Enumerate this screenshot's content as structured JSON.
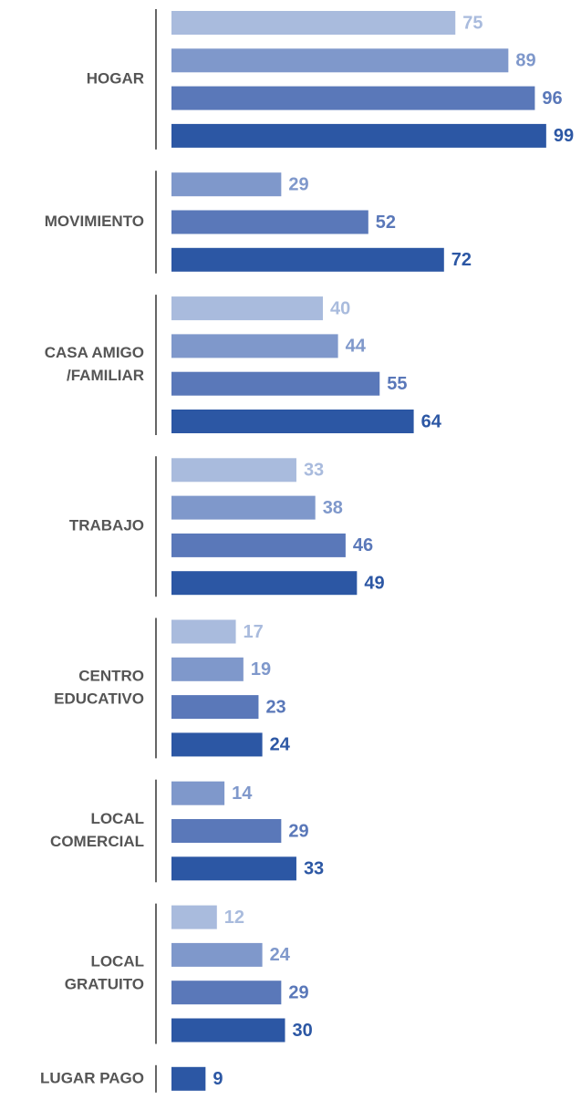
{
  "chart_data": {
    "type": "grouped-bar-horizontal",
    "categories": [
      [
        "HOGAR"
      ],
      [
        "MOVIMIENTO"
      ],
      [
        "CASA AMIGO",
        "/FAMILIAR"
      ],
      [
        "TRABAJO"
      ],
      [
        "CENTRO",
        "EDUCATIVO"
      ],
      [
        "LOCAL",
        "COMERCIAL"
      ],
      [
        "LOCAL",
        "GRATUITO"
      ],
      [
        "LUGAR PAGO"
      ]
    ],
    "series": [
      {
        "color": "#a9bbdd",
        "values": [
          75,
          null,
          40,
          33,
          17,
          null,
          12,
          null
        ]
      },
      {
        "color": "#7f98cb",
        "values": [
          89,
          29,
          44,
          38,
          19,
          14,
          24,
          null
        ]
      },
      {
        "color": "#5a78b9",
        "values": [
          96,
          52,
          55,
          46,
          23,
          29,
          29,
          null
        ]
      },
      {
        "color": "#2c57a4",
        "values": [
          99,
          72,
          64,
          49,
          24,
          33,
          30,
          9
        ]
      }
    ],
    "xlim": [
      0,
      100
    ]
  }
}
